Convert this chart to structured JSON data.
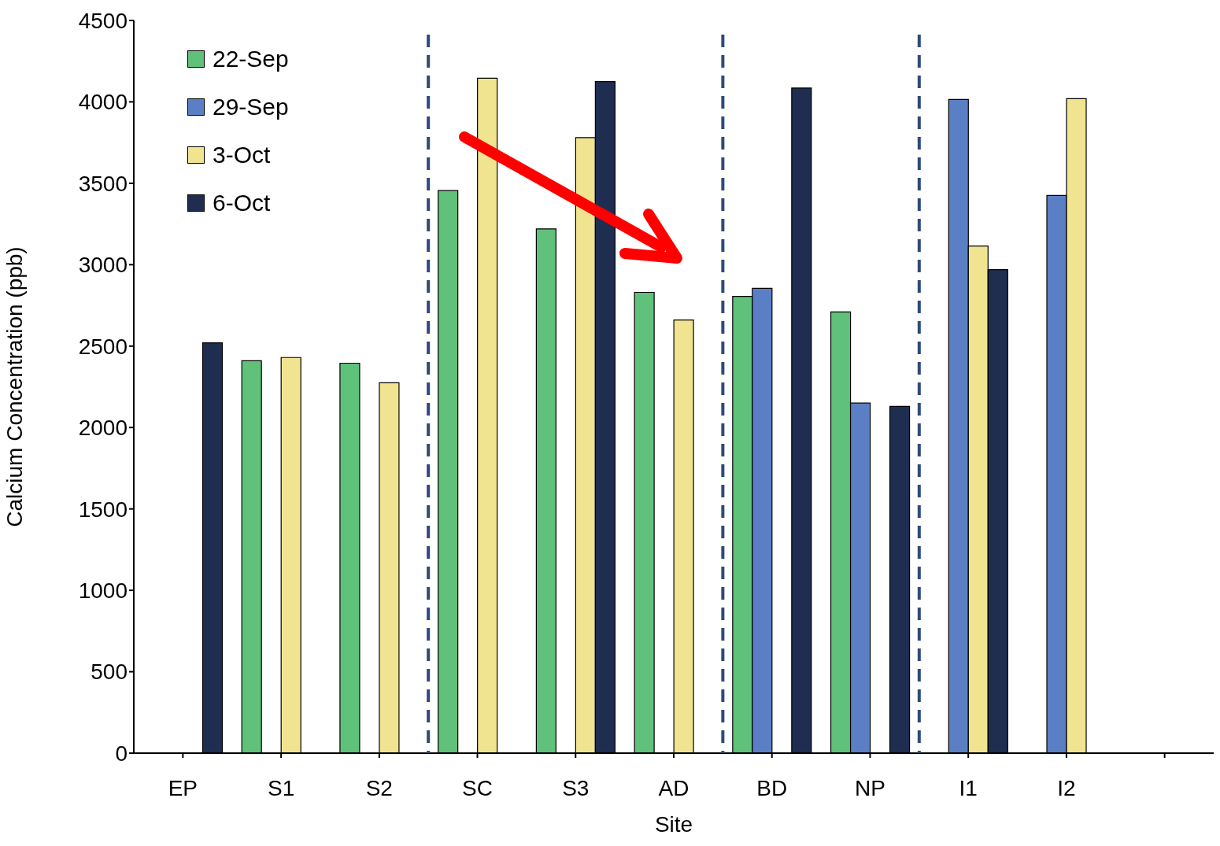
{
  "chart_data": {
    "type": "bar",
    "xlabel": "Site",
    "ylabel": "Calcium Concentration (ppb)",
    "categories": [
      "EP",
      "S1",
      "S2",
      "SC",
      "S3",
      "AD",
      "BD",
      "NP",
      "I1",
      "I2",
      null
    ],
    "series": [
      {
        "name": "22-Sep",
        "color": "#5fc17a",
        "values": [
          null,
          2410,
          2395,
          3455,
          3220,
          2830,
          2805,
          2710,
          null,
          null,
          null
        ]
      },
      {
        "name": "29-Sep",
        "color": "#5b7fc4",
        "values": [
          null,
          null,
          null,
          null,
          null,
          null,
          2855,
          2150,
          4015,
          3425,
          null
        ]
      },
      {
        "name": "3-Oct",
        "color": "#f0e491",
        "values": [
          null,
          2430,
          2275,
          4145,
          3780,
          2660,
          null,
          null,
          3115,
          4020,
          null
        ]
      },
      {
        "name": "6-Oct",
        "color": "#1f2d50",
        "values": [
          2520,
          null,
          null,
          null,
          4125,
          null,
          4085,
          2130,
          2970,
          null,
          null
        ]
      }
    ],
    "ylim": [
      0,
      4500
    ],
    "yticks": [
      0,
      500,
      1000,
      1500,
      2000,
      2500,
      3000,
      3500,
      4000,
      4500
    ],
    "grid": false,
    "legend": "top left"
  }
}
